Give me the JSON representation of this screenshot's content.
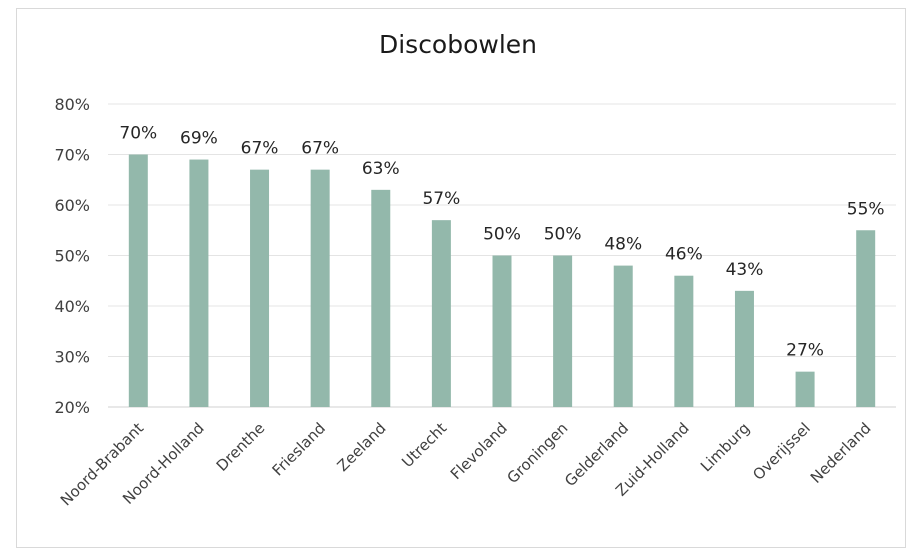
{
  "chart_data": {
    "type": "bar",
    "title": "Discobowlen",
    "xlabel": "",
    "ylabel": "",
    "ylim": [
      0.2,
      0.8
    ],
    "y_ticks": [
      "20%",
      "30%",
      "40%",
      "50%",
      "60%",
      "70%",
      "80%"
    ],
    "grid": "horizontal",
    "bar_color": "#93b8ab",
    "categories": [
      "Noord-Brabant",
      "Noord-Holland",
      "Drenthe",
      "Friesland",
      "Zeeland",
      "Utrecht",
      "Flevoland",
      "Groningen",
      "Gelderland",
      "Zuid-Holland",
      "Limburg",
      "Overijssel",
      "Nederland"
    ],
    "values": [
      0.7,
      0.69,
      0.67,
      0.67,
      0.63,
      0.57,
      0.5,
      0.5,
      0.48,
      0.46,
      0.43,
      0.27,
      0.55
    ],
    "data_labels": [
      "70%",
      "69%",
      "67%",
      "67%",
      "63%",
      "57%",
      "50%",
      "50%",
      "48%",
      "46%",
      "43%",
      "27%",
      "55%"
    ]
  }
}
